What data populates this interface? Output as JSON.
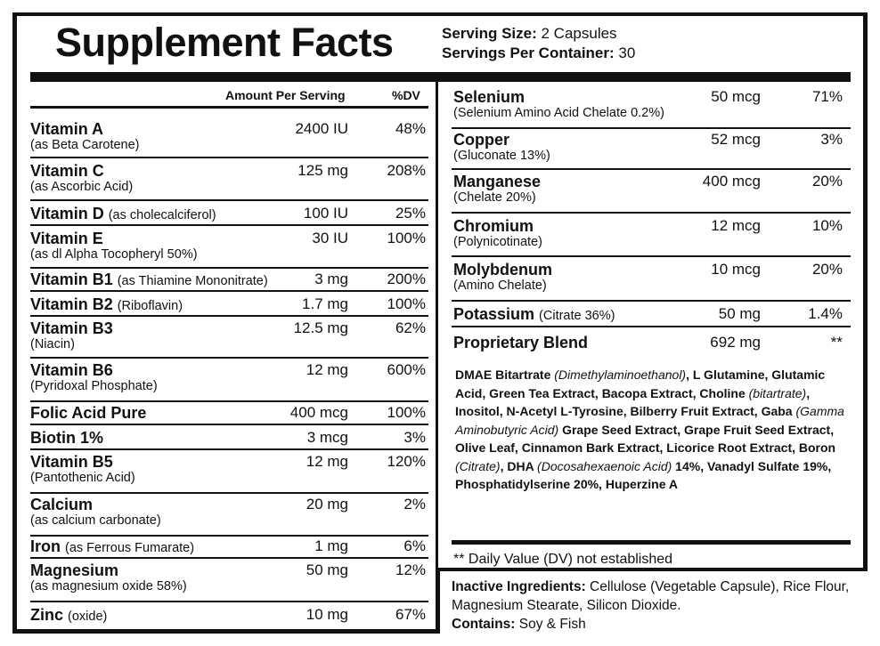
{
  "title": "Supplement Facts",
  "serving_size_label": "Serving Size:",
  "serving_size_value": "2 Capsules",
  "servings_per_container_label": "Servings Per Container:",
  "servings_per_container_value": "30",
  "header": {
    "amount": "Amount Per Serving",
    "dv": "%DV"
  },
  "left_rows": [
    {
      "name": "Vitamin A",
      "inline": "",
      "sub": "(as Beta Carotene)",
      "amount": "2400 IU",
      "dv": "48%"
    },
    {
      "name": "Vitamin C",
      "inline": "",
      "sub": "(as Ascorbic Acid)",
      "amount": "125 mg",
      "dv": "208%"
    },
    {
      "name": "Vitamin D",
      "inline": "(as cholecalciferol)",
      "sub": "",
      "amount": "100 IU",
      "dv": "25%"
    },
    {
      "name": "Vitamin E",
      "inline": "",
      "sub": "(as dl Alpha Tocopheryl 50%)",
      "amount": "30 IU",
      "dv": "100%"
    },
    {
      "name": "Vitamin B1",
      "inline": "(as Thiamine Mononitrate)",
      "sub": "",
      "amount": "3 mg",
      "dv": "200%"
    },
    {
      "name": "Vitamin B2",
      "inline": "(Riboflavin)",
      "sub": "",
      "amount": "1.7 mg",
      "dv": "100%"
    },
    {
      "name": "Vitamin B3",
      "inline": "",
      "sub": "(Niacin)",
      "amount": "12.5 mg",
      "dv": "62%"
    },
    {
      "name": "Vitamin B6",
      "inline": "",
      "sub": "(Pyridoxal Phosphate)",
      "amount": "12 mg",
      "dv": "600%"
    },
    {
      "name": "Folic Acid Pure",
      "inline": "",
      "sub": "",
      "amount": "400 mcg",
      "dv": "100%"
    },
    {
      "name": "Biotin 1%",
      "inline": "",
      "sub": "",
      "amount": "3 mcg",
      "dv": "3%"
    },
    {
      "name": "Vitamin B5",
      "inline": "",
      "sub": "(Pantothenic Acid)",
      "amount": "12 mg",
      "dv": "120%"
    },
    {
      "name": "Calcium",
      "inline": "",
      "sub": "(as calcium carbonate)",
      "amount": "20 mg",
      "dv": "2%"
    },
    {
      "name": "Iron",
      "inline": "(as Ferrous Fumarate)",
      "sub": "",
      "amount": "1 mg",
      "dv": "6%"
    },
    {
      "name": "Magnesium",
      "inline": "",
      "sub": "(as magnesium oxide 58%)",
      "amount": "50 mg",
      "dv": "12%"
    },
    {
      "name": "Zinc",
      "inline": "(oxide)",
      "sub": "",
      "amount": "10 mg",
      "dv": "67%"
    }
  ],
  "right_rows": [
    {
      "name": "Selenium",
      "inline": "",
      "sub": "(Selenium Amino Acid Chelate 0.2%)",
      "amount": "50 mcg",
      "dv": "71%"
    },
    {
      "name": "Copper",
      "inline": "",
      "sub": "(Gluconate 13%)",
      "amount": "52 mcg",
      "dv": "3%"
    },
    {
      "name": "Manganese",
      "inline": "",
      "sub": "(Chelate 20%)",
      "amount": "400 mcg",
      "dv": "20%"
    },
    {
      "name": "Chromium",
      "inline": "",
      "sub": "(Polynicotinate)",
      "amount": "12 mcg",
      "dv": "10%"
    },
    {
      "name": "Molybdenum",
      "inline": "",
      "sub": "(Amino Chelate)",
      "amount": "10 mcg",
      "dv": "20%"
    },
    {
      "name": "Potassium",
      "inline": "(Citrate 36%)",
      "sub": "",
      "amount": "50 mg",
      "dv": "1.4%"
    },
    {
      "name": "Proprietary Blend",
      "inline": "",
      "sub": "",
      "amount": "692 mg",
      "dv": "**"
    }
  ],
  "blend_parts": [
    {
      "text": "DMAE Bitartrate ",
      "italic": false
    },
    {
      "text": "(Dimethylaminoethanol)",
      "italic": true
    },
    {
      "text": ", L Glutamine, Glutamic Acid, Green Tea Extract, Bacopa Extract, Choline ",
      "italic": false
    },
    {
      "text": "(bitartrate)",
      "italic": true
    },
    {
      "text": ", Inositol, N-Acetyl L-Tyrosine, Bilberry Fruit Extract, Gaba ",
      "italic": false
    },
    {
      "text": "(Gamma Aminobutyric Acid)",
      "italic": true
    },
    {
      "text": " Grape Seed Extract, Grape Fruit Seed Extract, Olive Leaf, Cinnamon Bark Extract, Licorice Root Extract, Boron ",
      "italic": false
    },
    {
      "text": "(Citrate)",
      "italic": true
    },
    {
      "text": ", DHA ",
      "italic": false
    },
    {
      "text": "(Docosahexaenoic Acid)",
      "italic": true
    },
    {
      "text": " 14%, Vanadyl Sulfate 19%, Phosphatidylserine 20%, Huperzine A",
      "italic": false
    }
  ],
  "dv_note": "** Daily Value (DV) not established",
  "inactive_label": "Inactive Ingredients:",
  "inactive_text": " Cellulose (Vegetable Capsule), Rice Flour, Magnesium Stearate, Silicon Dioxide.",
  "contains_label": "Contains:",
  "contains_text": " Soy & Fish"
}
